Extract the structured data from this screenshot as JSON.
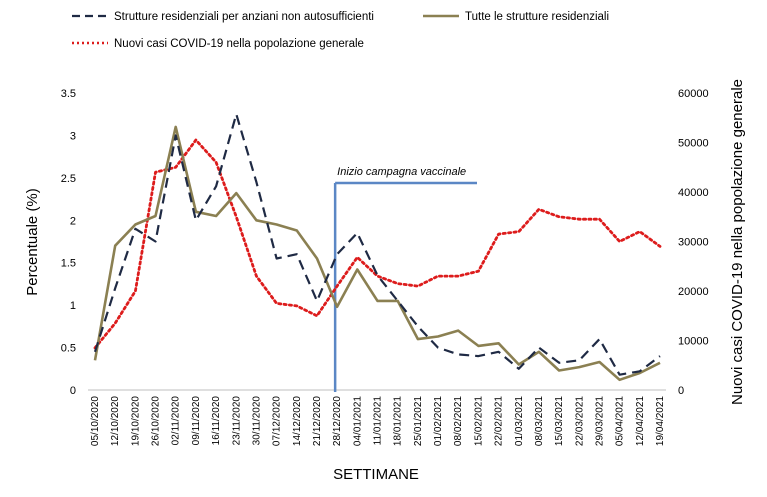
{
  "chart_data": {
    "type": "line",
    "categories": [
      "05/10/2020",
      "12/10/2020",
      "19/10/2020",
      "26/10/2020",
      "02/11/2020",
      "09/11/2020",
      "16/11/2020",
      "23/11/2020",
      "30/11/2020",
      "07/12/2020",
      "14/12/2020",
      "21/12/2020",
      "28/12/2020",
      "04/01/2021",
      "11/01/2021",
      "18/01/2021",
      "25/01/2021",
      "01/02/2021",
      "08/02/2021",
      "15/02/2021",
      "22/02/2021",
      "01/03/2021",
      "08/03/2021",
      "15/03/2021",
      "22/03/2021",
      "29/03/2021",
      "05/04/2021",
      "12/04/2021",
      "19/04/2021"
    ],
    "xlabel": "SETTIMANE",
    "ylabel": "Percentuale (%)",
    "y2label": "Nuovi casi COVID-19 nella popolazione generale",
    "ylim": [
      0,
      3.5
    ],
    "y2lim": [
      0,
      60000
    ],
    "yticks": [
      "0",
      "0.5",
      "1",
      "1.5",
      "2",
      "2.5",
      "3",
      "3.5"
    ],
    "y2ticks": [
      "0",
      "10000",
      "20000",
      "30000",
      "40000",
      "50000",
      "60000"
    ],
    "legend_position": "top",
    "series": [
      {
        "name": "Strutture residenziali per anziani non autosufficienti",
        "axis": "left",
        "style": "dashed",
        "color": "#1f2a44",
        "values": [
          0.45,
          1.2,
          1.9,
          1.75,
          3.0,
          2.0,
          2.4,
          3.25,
          2.45,
          1.55,
          1.6,
          1.05,
          1.6,
          1.85,
          1.35,
          1.05,
          0.75,
          0.5,
          0.42,
          0.4,
          0.45,
          0.25,
          0.5,
          0.32,
          0.35,
          0.6,
          0.18,
          0.22,
          0.4
        ]
      },
      {
        "name": "Tutte le strutture residenziali",
        "axis": "left",
        "style": "solid",
        "color": "#8b8052",
        "values": [
          0.35,
          1.7,
          1.95,
          2.05,
          3.1,
          2.1,
          2.05,
          2.32,
          2.0,
          1.95,
          1.88,
          1.55,
          0.98,
          1.42,
          1.05,
          1.05,
          0.6,
          0.63,
          0.7,
          0.52,
          0.55,
          0.3,
          0.45,
          0.23,
          0.27,
          0.33,
          0.12,
          0.2,
          0.32
        ]
      },
      {
        "name": "Nuovi casi COVID-19 nella popolazione generale",
        "axis": "right",
        "style": "dotted",
        "color": "#dd1c1c",
        "values": [
          8500,
          13500,
          20000,
          44000,
          45000,
          50500,
          46000,
          35000,
          23000,
          17500,
          17000,
          15000,
          21000,
          26800,
          23000,
          21500,
          21000,
          23000,
          23000,
          24000,
          31500,
          32000,
          36500,
          35000,
          34500,
          34500,
          30000,
          32000,
          29000
        ]
      }
    ],
    "annotation": {
      "text": "Inizio campagna vaccinale",
      "at_category": "28/12/2020",
      "line_color": "#5b87c5"
    }
  }
}
